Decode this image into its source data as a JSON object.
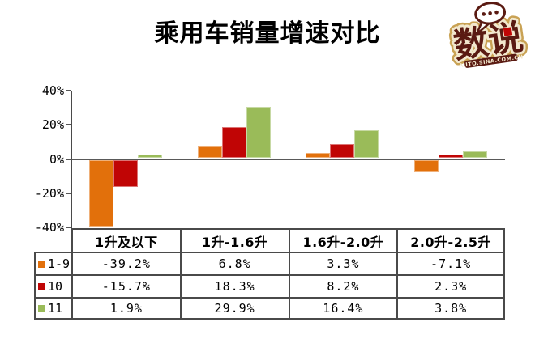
{
  "title": "乘用车销量增速对比",
  "logo": {
    "text": "数说",
    "subtext": "AUTO.SINA.COM.CN"
  },
  "chart_data": {
    "type": "bar",
    "title": "乘用车销量增速对比",
    "categories": [
      "1升及以下",
      "1升-1.6升",
      "1.6升-2.0升",
      "2.0升-2.5升"
    ],
    "series": [
      {
        "name": "1-9",
        "color": "#E2700B",
        "values": [
          -39.2,
          6.8,
          3.3,
          -7.1
        ]
      },
      {
        "name": "10",
        "color": "#C00505",
        "values": [
          -15.7,
          18.3,
          8.2,
          2.3
        ]
      },
      {
        "name": "11",
        "color": "#9ABB59",
        "values": [
          1.9,
          29.9,
          16.4,
          3.8
        ]
      }
    ],
    "ylim": [
      -40,
      40
    ],
    "ytick_labels": [
      "40%",
      "20%",
      "0%",
      "-20%",
      "-40%"
    ],
    "value_unit": "percent",
    "grid": false,
    "legend_position": "data-table-left",
    "data_table_shown": true
  },
  "table": {
    "columns": [
      "1升及以下",
      "1升-1.6升",
      "1.6升-2.0升",
      "2.0升-2.5升"
    ],
    "rows": [
      {
        "label": "1-9",
        "swatch_color": "#E2700B",
        "values": [
          "-39.2%",
          "6.8%",
          "3.3%",
          "-7.1%"
        ]
      },
      {
        "label": "10",
        "swatch_color": "#C00505",
        "values": [
          "-15.7%",
          "18.3%",
          "8.2%",
          "2.3%"
        ]
      },
      {
        "label": "11",
        "swatch_color": "#9ABB59",
        "values": [
          "1.9%",
          "29.9%",
          "16.4%",
          "3.8%"
        ]
      }
    ]
  }
}
